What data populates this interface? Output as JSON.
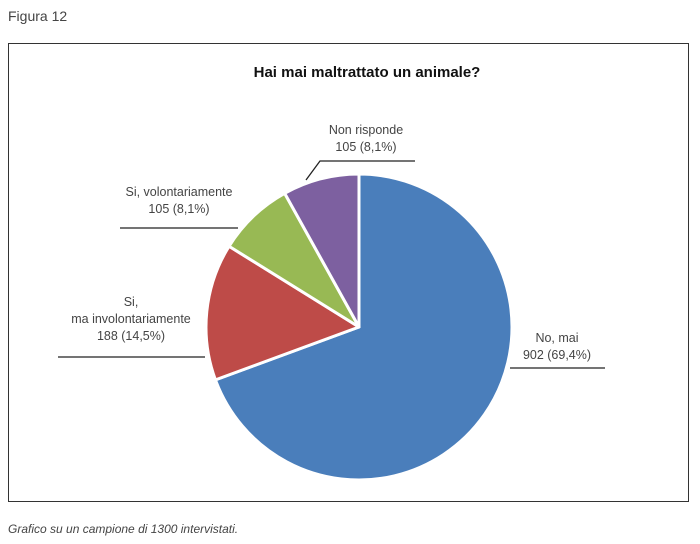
{
  "figure_label": "Figura 12",
  "caption": "Grafico su un campione di 1300 intervistati.",
  "chart_data": {
    "type": "pie",
    "title": "Hai mai maltrattato un animale?",
    "total": 1300,
    "start": "top, clockwise",
    "slices": [
      {
        "label": [
          "No, mai"
        ],
        "value": 902,
        "value_label": "902 (69,4%)",
        "percent": 69.4,
        "color": "#4a7ebb"
      },
      {
        "label": [
          "Si,",
          "ma involontariamente"
        ],
        "value": 188,
        "value_label": "188 (14,5%)",
        "percent": 14.5,
        "color": "#be4b48"
      },
      {
        "label": [
          "Si, volontariamente"
        ],
        "value": 105,
        "value_label": "105 (8,1%)",
        "percent": 8.1,
        "color": "#98b954"
      },
      {
        "label": [
          "Non risponde"
        ],
        "value": 105,
        "value_label": "105 (8,1%)",
        "percent": 8.1,
        "color": "#7d60a0"
      }
    ]
  }
}
